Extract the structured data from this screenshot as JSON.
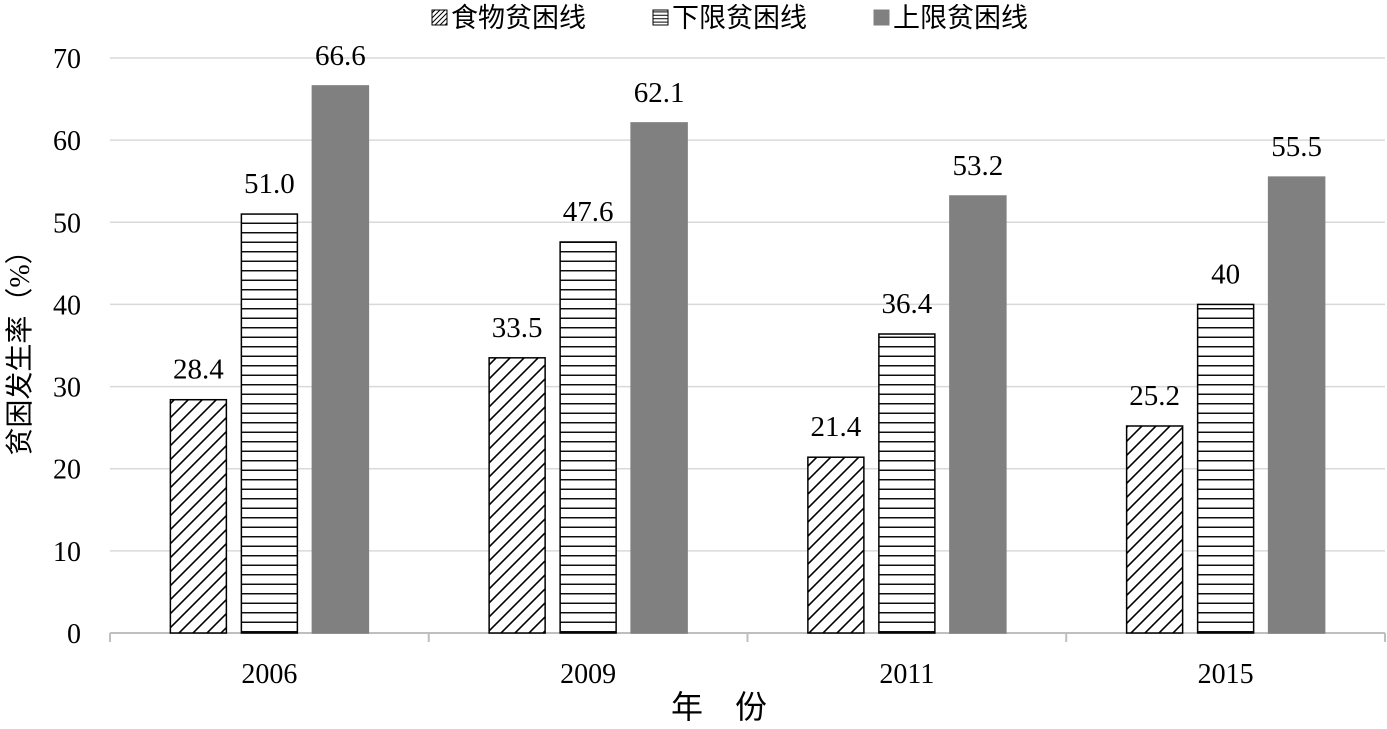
{
  "chart_data": {
    "type": "bar",
    "categories": [
      "2006",
      "2009",
      "2011",
      "2015"
    ],
    "series": [
      {
        "name": "食物贫困线",
        "values": [
          28.4,
          33.5,
          21.4,
          25.2
        ],
        "labels": [
          "28.4",
          "33.5",
          "21.4",
          "25.2"
        ],
        "pattern": "diagonal-hatch"
      },
      {
        "name": "下限贫困线",
        "values": [
          51.0,
          47.6,
          36.4,
          40
        ],
        "labels": [
          "51.0",
          "47.6",
          "36.4",
          "40"
        ],
        "pattern": "horizontal-lines"
      },
      {
        "name": "上限贫困线",
        "values": [
          66.6,
          62.1,
          53.2,
          55.5
        ],
        "labels": [
          "66.6",
          "62.1",
          "53.2",
          "55.5"
        ],
        "pattern": "solid"
      }
    ],
    "xlabel": "年　份",
    "ylabel": "贫困发生率（%）",
    "ylim": [
      0,
      70
    ],
    "yticks": [
      "0",
      "10",
      "20",
      "30",
      "40",
      "50",
      "60",
      "70"
    ],
    "grid": true,
    "legend_position": "top-center",
    "colors": {
      "solid_bar": "#808080",
      "gridline": "#d9d9d9",
      "axis": "#bfbfbf",
      "bar_outline": "#000000"
    }
  }
}
